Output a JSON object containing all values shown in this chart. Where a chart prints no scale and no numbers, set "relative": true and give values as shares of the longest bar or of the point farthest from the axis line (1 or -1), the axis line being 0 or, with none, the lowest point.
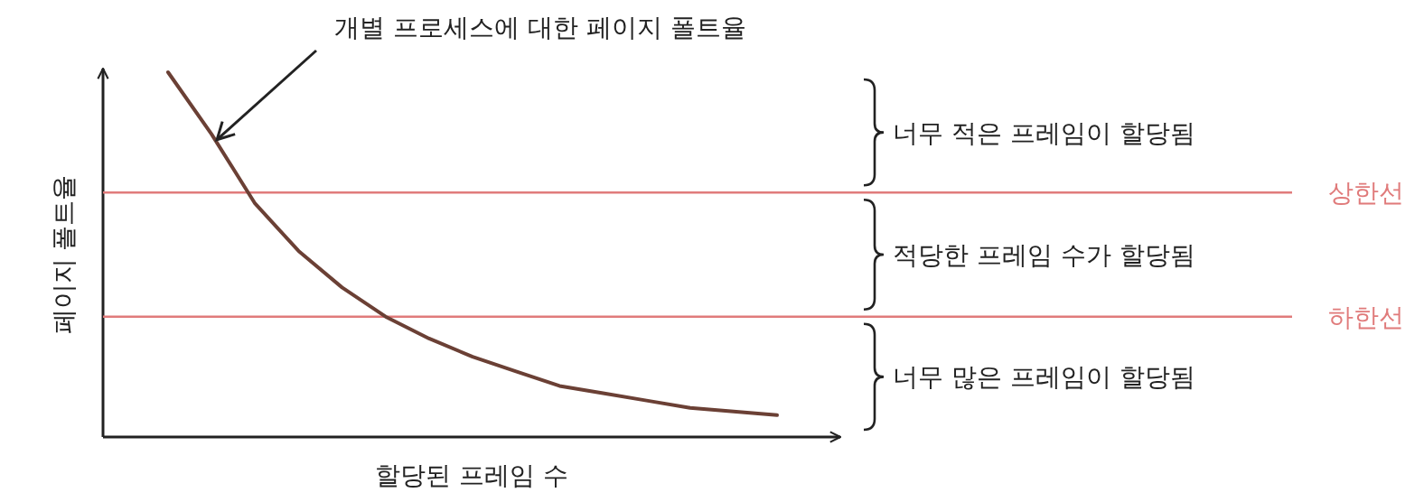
{
  "chart_data": {
    "type": "line",
    "relative": true,
    "xlabel": "할당된 프레임 수",
    "ylabel": "페이지 폴트율",
    "categories": [
      null,
      null,
      null,
      null,
      null,
      null,
      null,
      null,
      null,
      null,
      null,
      null,
      null,
      null,
      null
    ],
    "series": [
      {
        "color": "#6b4035",
        "values": [
          1.0,
          0.83,
          0.64,
          0.51,
          0.41,
          0.33,
          0.27,
          0.22,
          0.18,
          0.14,
          0.12,
          0.1,
          0.08,
          0.07,
          0.06
        ]
      }
    ],
    "ref_lines": [
      {
        "axis": "y",
        "value": 0.67,
        "label": "상한선",
        "color": "#e07b7b"
      },
      {
        "axis": "y",
        "value": 0.33,
        "label": "하한선",
        "color": "#e07b7b"
      }
    ],
    "annotations": [
      "개별 프로세스에 대한 페이지 폴트율",
      "너무 적은 프레임이 할당됨",
      "적당한 프레임 수가 할당됨",
      "너무 많은 프레임이 할당됨"
    ]
  }
}
